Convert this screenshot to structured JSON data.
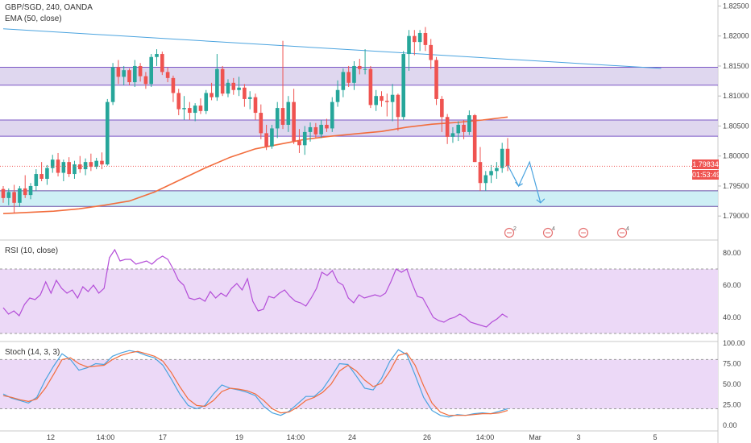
{
  "header": {
    "symbol": "GBP/SGD, 240, OANDA",
    "ema_label": "EMA (50, close)",
    "rsi_label": "RSI (10, close)",
    "stoch_label": "Stoch (14, 3, 3)"
  },
  "price_badge": {
    "price": "1.79834",
    "countdown": "01:53:49"
  },
  "colors": {
    "up": "#26a69a",
    "down": "#ef5350",
    "ema": "#f26d3d",
    "trend": "#4aa3df",
    "zone_purple": "#d9d0ec",
    "zone_cyan": "#c6ecf3",
    "rsi": "#b44ed8",
    "stoch_k": "#4aa3df",
    "stoch_d": "#f26d3d"
  },
  "chart_data": [
    {
      "type": "candlestick",
      "title": "GBP/SGD, 240, OANDA",
      "ylim": [
        1.786,
        1.826
      ],
      "y_ticks": [
        "1.82500",
        "1.82000",
        "1.81500",
        "1.81000",
        "1.80500",
        "1.80000",
        "1.79500",
        "1.79000"
      ],
      "x_ticks": [
        "12",
        "14:00",
        "17",
        "19",
        "14:00",
        "24",
        "26",
        "14:00",
        "Mar",
        "3",
        "5"
      ],
      "candles": [
        [
          1.7945,
          1.795,
          1.7922,
          1.793
        ],
        [
          1.793,
          1.7946,
          1.7918,
          1.794
        ],
        [
          1.794,
          1.7952,
          1.7905,
          1.7922
        ],
        [
          1.7922,
          1.795,
          1.7915,
          1.7946
        ],
        [
          1.7946,
          1.7968,
          1.793,
          1.7935
        ],
        [
          1.7935,
          1.7955,
          1.7928,
          1.795
        ],
        [
          1.795,
          1.7978,
          1.7942,
          1.797
        ],
        [
          1.797,
          1.799,
          1.7958,
          1.7962
        ],
        [
          1.7962,
          1.7985,
          1.7952,
          1.798
        ],
        [
          1.798,
          1.8002,
          1.7972,
          1.7994
        ],
        [
          1.7994,
          1.8005,
          1.7966,
          1.7972
        ],
        [
          1.7972,
          1.7994,
          1.7958,
          1.799
        ],
        [
          1.799,
          1.7998,
          1.7965,
          1.797
        ],
        [
          1.797,
          1.7992,
          1.7962,
          1.7986
        ],
        [
          1.7986,
          1.8,
          1.7972,
          1.7978
        ],
        [
          1.7978,
          1.7996,
          1.7968,
          1.799
        ],
        [
          1.799,
          1.8004,
          1.7975,
          1.7982
        ],
        [
          1.7982,
          1.7997,
          1.7978,
          1.7992
        ],
        [
          1.7992,
          1.8006,
          1.7978,
          1.7986
        ],
        [
          1.7986,
          1.8095,
          1.7984,
          1.809
        ],
        [
          1.809,
          1.8155,
          1.8085,
          1.8148
        ],
        [
          1.8148,
          1.816,
          1.812,
          1.8132
        ],
        [
          1.8132,
          1.815,
          1.8118,
          1.8143
        ],
        [
          1.8143,
          1.8146,
          1.8118,
          1.8123
        ],
        [
          1.8123,
          1.816,
          1.8115,
          1.815
        ],
        [
          1.815,
          1.8155,
          1.8124,
          1.8133
        ],
        [
          1.8133,
          1.814,
          1.8112,
          1.812
        ],
        [
          1.812,
          1.817,
          1.8115,
          1.8165
        ],
        [
          1.8165,
          1.8178,
          1.815,
          1.817
        ],
        [
          1.817,
          1.8174,
          1.8135,
          1.814
        ],
        [
          1.814,
          1.8148,
          1.8123,
          1.813
        ],
        [
          1.813,
          1.8134,
          1.809,
          1.8105
        ],
        [
          1.8105,
          1.8112,
          1.8068,
          1.8078
        ],
        [
          1.8078,
          1.81,
          1.806,
          1.808
        ],
        [
          1.808,
          1.809,
          1.806,
          1.8072
        ],
        [
          1.8072,
          1.8088,
          1.8058,
          1.8084
        ],
        [
          1.8084,
          1.8096,
          1.807,
          1.8075
        ],
        [
          1.8075,
          1.811,
          1.807,
          1.8105
        ],
        [
          1.8105,
          1.8122,
          1.8093,
          1.8098
        ],
        [
          1.8098,
          1.817,
          1.8092,
          1.8145
        ],
        [
          1.8145,
          1.815,
          1.81,
          1.8104
        ],
        [
          1.8104,
          1.8128,
          1.8098,
          1.8122
        ],
        [
          1.8122,
          1.813,
          1.8102,
          1.811
        ],
        [
          1.811,
          1.8132,
          1.81,
          1.8114
        ],
        [
          1.8114,
          1.812,
          1.8082,
          1.8095
        ],
        [
          1.8095,
          1.8108,
          1.8078,
          1.8098
        ],
        [
          1.8098,
          1.8104,
          1.806,
          1.8072
        ],
        [
          1.8072,
          1.8086,
          1.8028,
          1.8038
        ],
        [
          1.8038,
          1.8052,
          1.801,
          1.8016
        ],
        [
          1.8016,
          1.8052,
          1.8012,
          1.8046
        ],
        [
          1.8046,
          1.809,
          1.803,
          1.808
        ],
        [
          1.808,
          1.8192,
          1.8045,
          1.8052
        ],
        [
          1.8052,
          1.81,
          1.804,
          1.809
        ],
        [
          1.809,
          1.8112,
          1.802,
          1.8025
        ],
        [
          1.8025,
          1.8045,
          1.8005,
          1.8018
        ],
        [
          1.8018,
          1.805,
          1.8002,
          1.804
        ],
        [
          1.804,
          1.8056,
          1.8024,
          1.8048
        ],
        [
          1.8048,
          1.8055,
          1.803,
          1.8036
        ],
        [
          1.8036,
          1.806,
          1.803,
          1.8052
        ],
        [
          1.8052,
          1.8062,
          1.804,
          1.8046
        ],
        [
          1.8046,
          1.8098,
          1.804,
          1.809
        ],
        [
          1.809,
          1.8126,
          1.8082,
          1.811
        ],
        [
          1.811,
          1.8146,
          1.8098,
          1.814
        ],
        [
          1.814,
          1.815,
          1.8115,
          1.8122
        ],
        [
          1.8122,
          1.8158,
          1.811,
          1.815
        ],
        [
          1.815,
          1.8162,
          1.8136,
          1.8145
        ],
        [
          1.8145,
          1.8178,
          1.8136,
          1.8145
        ],
        [
          1.8145,
          1.815,
          1.808,
          1.8085
        ],
        [
          1.8085,
          1.811,
          1.8075,
          1.81
        ],
        [
          1.81,
          1.8108,
          1.8082,
          1.8092
        ],
        [
          1.8092,
          1.8104,
          1.8066,
          1.809
        ],
        [
          1.809,
          1.812,
          1.8058,
          1.8102
        ],
        [
          1.8102,
          1.8104,
          1.8042,
          1.8065
        ],
        [
          1.8065,
          1.8175,
          1.806,
          1.817
        ],
        [
          1.817,
          1.821,
          1.8142,
          1.82
        ],
        [
          1.82,
          1.821,
          1.8168,
          1.819
        ],
        [
          1.819,
          1.821,
          1.8175,
          1.8205
        ],
        [
          1.8205,
          1.8215,
          1.8175,
          1.8185
        ],
        [
          1.8185,
          1.8195,
          1.8145,
          1.816
        ],
        [
          1.816,
          1.8165,
          1.8085,
          1.8095
        ],
        [
          1.8095,
          1.81,
          1.804,
          1.8065
        ],
        [
          1.8065,
          1.807,
          1.802,
          1.8032
        ],
        [
          1.8032,
          1.8048,
          1.8022,
          1.8038
        ],
        [
          1.8038,
          1.8058,
          1.8025,
          1.8052
        ],
        [
          1.8052,
          1.806,
          1.8028,
          1.804
        ],
        [
          1.804,
          1.8076,
          1.8035,
          1.8068
        ],
        [
          1.8068,
          1.807,
          1.799,
          1.799
        ],
        [
          1.799,
          1.8015,
          1.7942,
          1.7955
        ],
        [
          1.7955,
          1.7975,
          1.7942,
          1.7968
        ],
        [
          1.7968,
          1.7985,
          1.7955,
          1.7975
        ],
        [
          1.7975,
          1.799,
          1.7962,
          1.798
        ],
        [
          1.798,
          1.8022,
          1.7972,
          1.8012
        ],
        [
          1.8012,
          1.803,
          1.7975,
          1.7983
        ]
      ],
      "ema_50": [
        1.7904,
        1.7906,
        1.7908,
        1.7912,
        1.7918,
        1.7925,
        1.794,
        1.796,
        1.798,
        1.7998,
        1.8012,
        1.802,
        1.8028,
        1.8033,
        1.8037,
        1.8041,
        1.8048,
        1.8053,
        1.8056,
        1.806,
        1.8065
      ],
      "trendline": [
        [
          0,
          1.8212
        ],
        [
          120,
          1.8146
        ]
      ],
      "zones": [
        {
          "kind": "resistance",
          "from": 1.8118,
          "to": 1.8148
        },
        {
          "kind": "resistance",
          "from": 1.8033,
          "to": 1.806
        },
        {
          "kind": "support",
          "from": 1.7916,
          "to": 1.7942
        }
      ]
    },
    {
      "type": "line",
      "title": "RSI (10, close)",
      "ylim": [
        25,
        87
      ],
      "y_ticks": [
        "80.00",
        "60.00",
        "40.00"
      ],
      "values": [
        46,
        42,
        44,
        41,
        48,
        52,
        51,
        54,
        62,
        55,
        63,
        58,
        55,
        57,
        52,
        59,
        56,
        60,
        55,
        58,
        77,
        82,
        75,
        76,
        76,
        73,
        74,
        75,
        73,
        76,
        78,
        76,
        70,
        63,
        60,
        52,
        51,
        52,
        50,
        56,
        52,
        55,
        53,
        58,
        61,
        57,
        64,
        50,
        44,
        45,
        53,
        52,
        55,
        57,
        53,
        50,
        49,
        47,
        52,
        58,
        68,
        66,
        69,
        62,
        60,
        52,
        49,
        54,
        52,
        53,
        54,
        53,
        55,
        62,
        70,
        68,
        70,
        61,
        53,
        52,
        46,
        40,
        38,
        37,
        39,
        40,
        42,
        40,
        37,
        36,
        35,
        34,
        37,
        39,
        42,
        40
      ],
      "bands": [
        30,
        70
      ]
    },
    {
      "type": "line",
      "title": "Stoch (14, 3, 3)",
      "ylim": [
        -5,
        100
      ],
      "y_ticks": [
        "100.00",
        "75.00",
        "50.00",
        "25.00",
        "0.00"
      ],
      "series": [
        {
          "values": [
            38,
            33,
            30,
            27,
            34,
            55,
            72,
            87,
            80,
            67,
            70,
            75,
            74,
            84,
            88,
            91,
            89,
            85,
            82,
            73,
            56,
            38,
            24,
            20,
            24,
            38,
            49,
            45,
            43,
            40,
            36,
            23,
            15,
            12,
            17,
            26,
            35,
            35,
            44,
            59,
            75,
            74,
            60,
            45,
            43,
            57,
            78,
            92,
            86,
            61,
            34,
            18,
            12,
            10,
            13,
            12,
            14,
            15,
            14,
            17,
            20
          ]
        },
        {
          "values": [
            36,
            34,
            31,
            29,
            32,
            45,
            62,
            80,
            82,
            75,
            71,
            72,
            73,
            80,
            85,
            88,
            90,
            87,
            84,
            78,
            64,
            47,
            32,
            24,
            23,
            30,
            41,
            45,
            44,
            42,
            38,
            30,
            20,
            15,
            16,
            22,
            30,
            34,
            40,
            50,
            66,
            73,
            66,
            55,
            47,
            51,
            66,
            85,
            88,
            73,
            48,
            27,
            16,
            12,
            12,
            12,
            13,
            14,
            14,
            15,
            18
          ]
        }
      ],
      "bands": [
        20,
        80
      ]
    }
  ]
}
